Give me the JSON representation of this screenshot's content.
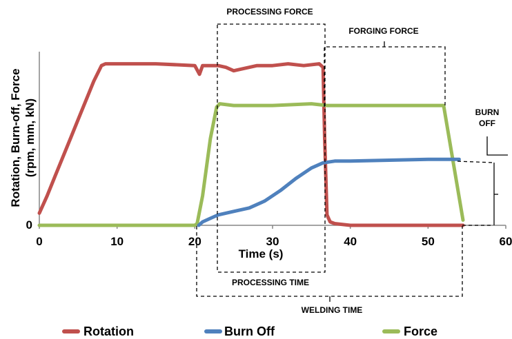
{
  "chart_data": {
    "type": "line",
    "xlabel": "Time (s)",
    "ylabel": [
      "Rotation, Burn-off, Force",
      "(rpm, mm, kN)"
    ],
    "xlim": [
      0,
      60
    ],
    "xticks": [
      "0",
      "10",
      "20",
      "30",
      "40",
      "50",
      "60"
    ],
    "yticks": [
      "0"
    ],
    "legend_position": "bottom",
    "series": [
      {
        "name": "Rotation",
        "color": "#c0504d",
        "x": [
          0,
          1,
          2,
          3,
          4,
          5,
          6,
          7,
          8,
          8.5,
          10,
          15,
          20,
          20.6,
          21,
          22,
          23,
          24,
          25,
          26,
          27,
          28,
          30,
          32,
          34,
          36,
          36.5,
          36.7,
          37,
          37.4,
          38,
          40,
          45,
          50,
          54.5
        ],
        "y": [
          0.07,
          0.17,
          0.28,
          0.39,
          0.5,
          0.61,
          0.72,
          0.83,
          0.92,
          0.93,
          0.93,
          0.93,
          0.92,
          0.87,
          0.92,
          0.92,
          0.92,
          0.91,
          0.89,
          0.9,
          0.91,
          0.92,
          0.92,
          0.93,
          0.92,
          0.93,
          0.91,
          0.5,
          0.06,
          0.02,
          0.01,
          0.0,
          0.0,
          0.0,
          0.0
        ]
      },
      {
        "name": "Burn Off",
        "color": "#4f81bd",
        "x": [
          20.5,
          21,
          22,
          23,
          25,
          27,
          29,
          31,
          33,
          35,
          36.5,
          38,
          40,
          45,
          50,
          54
        ],
        "y": [
          0.0,
          0.02,
          0.04,
          0.06,
          0.08,
          0.1,
          0.14,
          0.2,
          0.27,
          0.33,
          0.36,
          0.37,
          0.37,
          0.375,
          0.38,
          0.38
        ]
      },
      {
        "name": "Force",
        "color": "#9bbb59",
        "x": [
          0,
          5,
          10,
          15,
          20,
          20.3,
          21,
          22,
          22.8,
          23.2,
          25,
          30,
          35,
          37,
          40,
          45,
          50,
          52,
          54.5
        ],
        "y": [
          0.0,
          0.0,
          0.0,
          0.0,
          0.0,
          0.01,
          0.17,
          0.5,
          0.68,
          0.7,
          0.69,
          0.69,
          0.7,
          0.69,
          0.69,
          0.69,
          0.69,
          0.69,
          0.03
        ]
      }
    ],
    "annotations": {
      "processing_force": "PROCESSING FORCE",
      "forging_force": "FORGING FORCE",
      "burn_off": [
        "BURN",
        "OFF"
      ],
      "processing_time": "PROCESSING TIME",
      "welding_time": "WELDING TIME"
    }
  }
}
